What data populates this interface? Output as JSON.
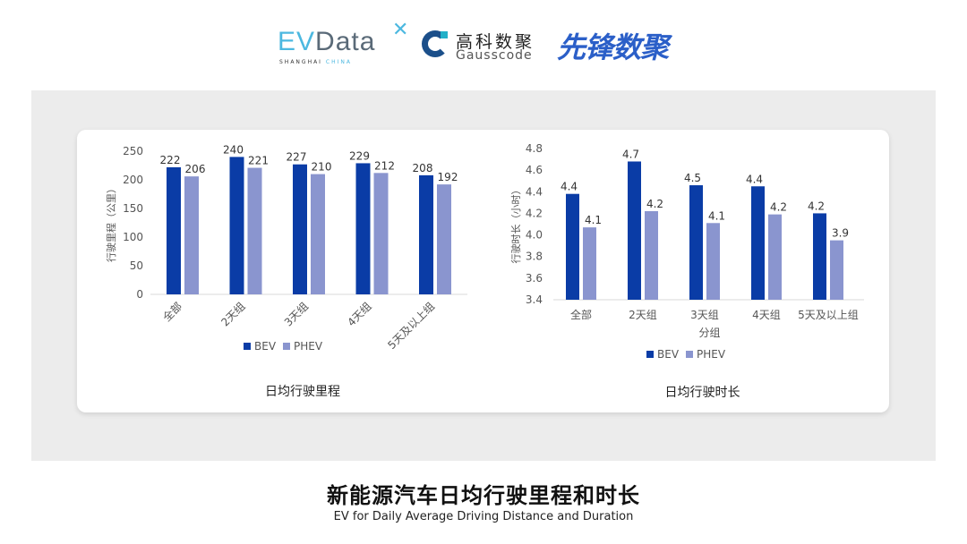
{
  "logos": {
    "evdata": {
      "part1": "EV",
      "part2": "Data",
      "tagline_a": "SHANGHAI",
      "tagline_b": "CHINA"
    },
    "gausscode": {
      "cn": "高科数聚",
      "en": "Gausscode"
    },
    "xianfeng": {
      "cn": "先锋数聚"
    }
  },
  "colors": {
    "BEV": "#0a3ca6",
    "PHEV": "#8a95cf"
  },
  "chart_data": [
    {
      "type": "bar",
      "title": "日均行驶里程",
      "xlabel": "",
      "ylabel": "行驶里程（公里）",
      "categories": [
        "全部",
        "2天组",
        "3天组",
        "4天组",
        "5天及以上组"
      ],
      "ylim": [
        0,
        250
      ],
      "yticks": [
        "0",
        "50",
        "100",
        "150",
        "200",
        "250"
      ],
      "grid": false,
      "legend": "bottom",
      "series": [
        {
          "name": "BEV",
          "values": [
            222,
            240,
            227,
            229,
            208
          ],
          "labels": [
            "222",
            "240",
            "227",
            "229",
            "208"
          ]
        },
        {
          "name": "PHEV",
          "values": [
            206,
            221,
            210,
            212,
            192
          ],
          "labels": [
            "206",
            "221",
            "210",
            "212",
            "192"
          ]
        }
      ]
    },
    {
      "type": "bar",
      "title": "日均行驶时长",
      "xlabel": "分组",
      "ylabel": "行驶时长（小时）",
      "categories": [
        "全部",
        "2天组",
        "3天组",
        "4天组",
        "5天及以上组"
      ],
      "ylim": [
        3.4,
        4.8
      ],
      "yticks": [
        "3.4",
        "3.6",
        "3.8",
        "4.0",
        "4.2",
        "4.4",
        "4.6",
        "4.8"
      ],
      "grid": false,
      "legend": "bottom",
      "series": [
        {
          "name": "BEV",
          "values": [
            4.38,
            4.68,
            4.46,
            4.45,
            4.2
          ],
          "labels": [
            "4.4",
            "4.7",
            "4.5",
            "4.4",
            "4.2"
          ]
        },
        {
          "name": "PHEV",
          "values": [
            4.07,
            4.22,
            4.11,
            4.19,
            3.95
          ],
          "labels": [
            "4.1",
            "4.2",
            "4.1",
            "4.2",
            "3.9"
          ]
        }
      ]
    }
  ],
  "footer": {
    "title_cn": "新能源汽车日均行驶里程和时长",
    "title_en": "EV for Daily Average Driving Distance and Duration"
  }
}
